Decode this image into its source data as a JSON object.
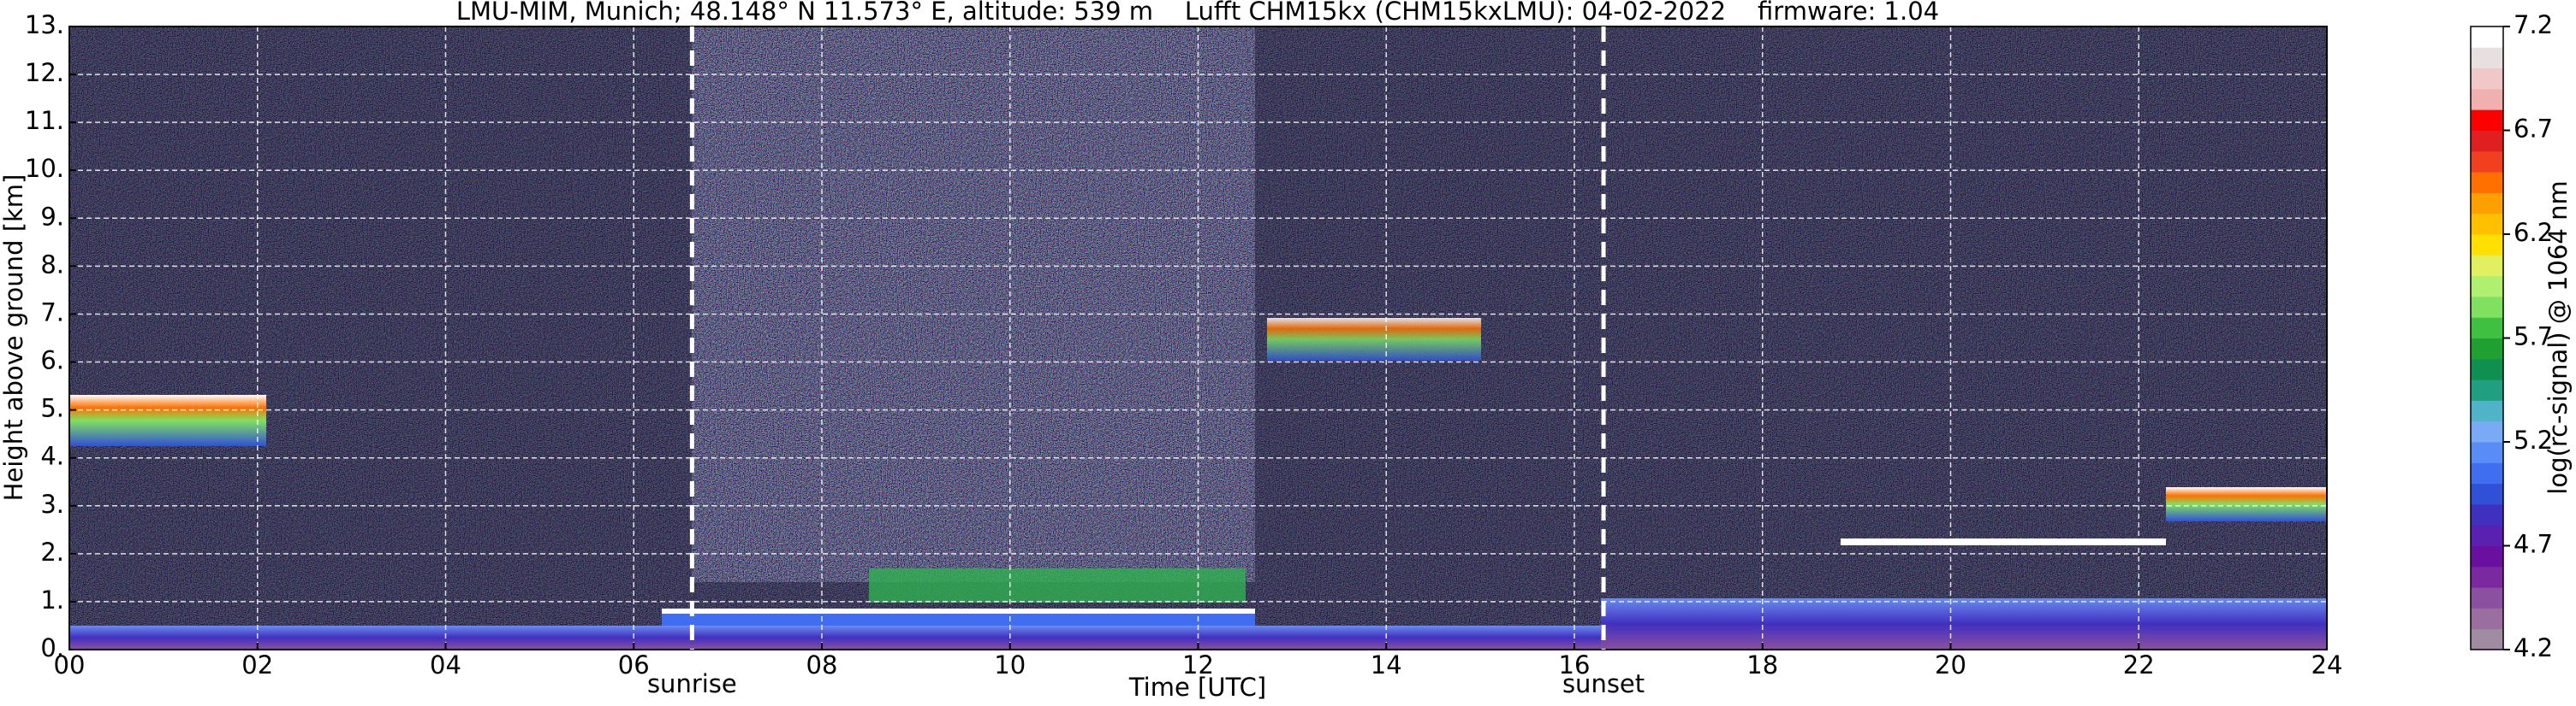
{
  "chart_data": {
    "type": "heatmap",
    "title": "LMU-MIM, Munich; 48.148° N 11.573° E, altitude: 539 m    Lufft CHM15kx (CHM15kxLMU): 04-02-2022    firmware: 1.04",
    "xlabel": "Time [UTC]",
    "ylabel": "Height above ground [km]",
    "xlim": [
      0,
      24
    ],
    "xticks": [
      {
        "value": 0,
        "label": "00"
      },
      {
        "value": 2,
        "label": "02"
      },
      {
        "value": 4,
        "label": "04"
      },
      {
        "value": 6,
        "label": "06"
      },
      {
        "value": 8,
        "label": "08"
      },
      10,
      12,
      14,
      16,
      18,
      20,
      22,
      24
    ],
    "ylim": [
      0,
      13
    ],
    "yticks": [
      {
        "value": 0,
        "label": "0."
      },
      {
        "value": 1,
        "label": "1."
      },
      {
        "value": 2,
        "label": "2."
      },
      {
        "value": 3,
        "label": "3."
      },
      {
        "value": 4,
        "label": "4."
      },
      {
        "value": 5,
        "label": "5."
      },
      {
        "value": 6,
        "label": "6."
      },
      {
        "value": 7,
        "label": "7."
      },
      {
        "value": 8,
        "label": "8."
      },
      {
        "value": 9,
        "label": "9."
      },
      {
        "value": 10,
        "label": "10."
      },
      {
        "value": 11,
        "label": "11."
      },
      {
        "value": 12,
        "label": "12."
      },
      {
        "value": 13,
        "label": "13."
      }
    ],
    "grid": true,
    "annotations": [
      {
        "label": "sunrise",
        "x": 6.62
      },
      {
        "label": "sunset",
        "x": 16.31
      }
    ],
    "colorbar": {
      "label": "log(rc-signal) @ 1064 nm",
      "lim": [
        4.2,
        7.2
      ],
      "ticks": [
        4.2,
        4.7,
        5.2,
        5.7,
        6.2,
        6.7,
        7.2
      ],
      "colors": [
        "#a08ca0",
        "#9b6ea0",
        "#8c50a0",
        "#7a2a9e",
        "#6a10a0",
        "#5a20b0",
        "#4030c0",
        "#3050d8",
        "#3f6ff0",
        "#5a8cf5",
        "#7aaaf5",
        "#4fb4c8",
        "#20a080",
        "#109050",
        "#20a030",
        "#40c040",
        "#80e060",
        "#b0f070",
        "#e0f060",
        "#ffe000",
        "#ffc000",
        "#ffa000",
        "#ff7000",
        "#f04020",
        "#e02020",
        "#ff0000",
        "#f0b0b0",
        "#f0c8c8",
        "#e8e0e0",
        "#ffffff"
      ]
    }
  }
}
